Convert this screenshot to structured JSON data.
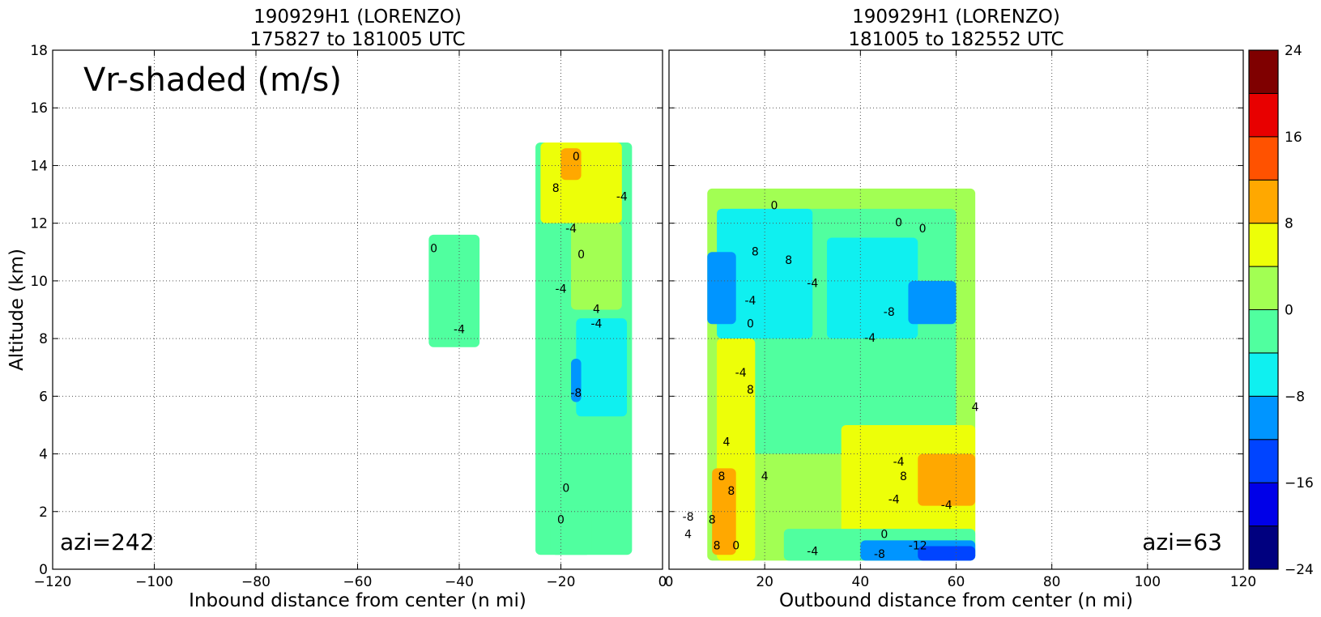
{
  "chart_data": [
    {
      "type": "heatmap",
      "title": "190929H1 (LORENZO)",
      "subtitle": "175827 to 181005 UTC",
      "xlabel": "Inbound distance from center (n mi)",
      "ylabel": "Altitude (km)",
      "xlim": [
        -120,
        0
      ],
      "ylim": [
        0,
        18
      ],
      "x_ticks": [
        "−120",
        "−100",
        "−80",
        "−60",
        "−40",
        "−20",
        "0"
      ],
      "y_ticks": [
        "0",
        "2",
        "4",
        "6",
        "8",
        "10",
        "12",
        "14",
        "16",
        "18"
      ],
      "annotation": "Vr-shaded (m/s)",
      "azimuth_label": "azi=242",
      "grid": true,
      "regions": [
        {
          "x": [
            -46,
            -36
          ],
          "y": [
            7.7,
            11.6
          ],
          "vr": -2
        },
        {
          "x": [
            -25,
            -6
          ],
          "y": [
            0.5,
            14.8
          ],
          "vr": -2
        },
        {
          "x": [
            -17,
            -7
          ],
          "y": [
            5.3,
            8.7
          ],
          "vr": -6
        },
        {
          "x": [
            -18,
            -16
          ],
          "y": [
            5.8,
            7.3
          ],
          "vr": -10
        },
        {
          "x": [
            -24,
            -8
          ],
          "y": [
            12.0,
            14.8
          ],
          "vr": 6
        },
        {
          "x": [
            -20,
            -16
          ],
          "y": [
            13.5,
            14.6
          ],
          "vr": 10
        },
        {
          "x": [
            -18,
            -8
          ],
          "y": [
            9.0,
            12.0
          ],
          "vr": 2
        },
        {
          "x": [
            -22,
            -14
          ],
          "y": [
            0.5,
            2.2
          ],
          "vr": -2
        }
      ],
      "contour_labels": [
        "0",
        "-4",
        "0",
        "8",
        "-4",
        "-4",
        "0",
        "4",
        "-4",
        "-4",
        "-8",
        "0",
        "0"
      ]
    },
    {
      "type": "heatmap",
      "title": "190929H1 (LORENZO)",
      "subtitle": "181005 to 182552 UTC",
      "xlabel": "Outbound distance from center (n mi)",
      "xlim": [
        0,
        120
      ],
      "ylim": [
        0,
        18
      ],
      "x_ticks": [
        "0",
        "20",
        "40",
        "60",
        "80",
        "100",
        "120"
      ],
      "azimuth_label": "azi=63",
      "grid": true,
      "regions": [
        {
          "x": [
            8,
            64
          ],
          "y": [
            0.3,
            13.2
          ],
          "vr": 2
        },
        {
          "x": [
            12,
            60
          ],
          "y": [
            4,
            12.5
          ],
          "vr": -2
        },
        {
          "x": [
            10,
            30
          ],
          "y": [
            8.0,
            12.5
          ],
          "vr": -6
        },
        {
          "x": [
            33,
            52
          ],
          "y": [
            8.0,
            11.5
          ],
          "vr": -6
        },
        {
          "x": [
            8,
            14
          ],
          "y": [
            8.5,
            11
          ],
          "vr": -10
        },
        {
          "x": [
            50,
            60
          ],
          "y": [
            8.5,
            10
          ],
          "vr": -10
        },
        {
          "x": [
            10,
            18
          ],
          "y": [
            0.3,
            8
          ],
          "vr": 6
        },
        {
          "x": [
            9,
            14
          ],
          "y": [
            0.5,
            3.5
          ],
          "vr": 10
        },
        {
          "x": [
            36,
            64
          ],
          "y": [
            1.2,
            5
          ],
          "vr": 6
        },
        {
          "x": [
            52,
            64
          ],
          "y": [
            2.2,
            4.0
          ],
          "vr": 10
        },
        {
          "x": [
            24,
            64
          ],
          "y": [
            0.3,
            1.4
          ],
          "vr": -2
        },
        {
          "x": [
            40,
            64
          ],
          "y": [
            0.3,
            1.0
          ],
          "vr": -10
        },
        {
          "x": [
            52,
            64
          ],
          "y": [
            0.3,
            0.8
          ],
          "vr": -14
        }
      ],
      "contour_labels": [
        "0",
        "8",
        "8",
        "-4",
        "0",
        "0",
        "0",
        "-8",
        "-4",
        "0",
        "-4",
        "8",
        "-4",
        "-8",
        "4",
        "8",
        "8",
        "8",
        "4",
        "4",
        "8",
        "4",
        "-4",
        "8",
        "-4",
        "0",
        "-12",
        "-4",
        "-8",
        "-4"
      ]
    }
  ],
  "colorbar": {
    "tick_labels": [
      "24",
      "16",
      "8",
      "0",
      "−8",
      "−16",
      "−24"
    ],
    "boundaries": [
      -24,
      -20,
      -16,
      -12,
      -8,
      -4,
      0,
      4,
      8,
      12,
      16,
      20,
      24
    ],
    "colors": [
      "#00007f",
      "#0000e8",
      "#0044ff",
      "#0095ff",
      "#0ff0f0",
      "#50ff9f",
      "#a2ff53",
      "#edff08",
      "#ffa800",
      "#ff5200",
      "#e80000",
      "#7f0000"
    ]
  }
}
